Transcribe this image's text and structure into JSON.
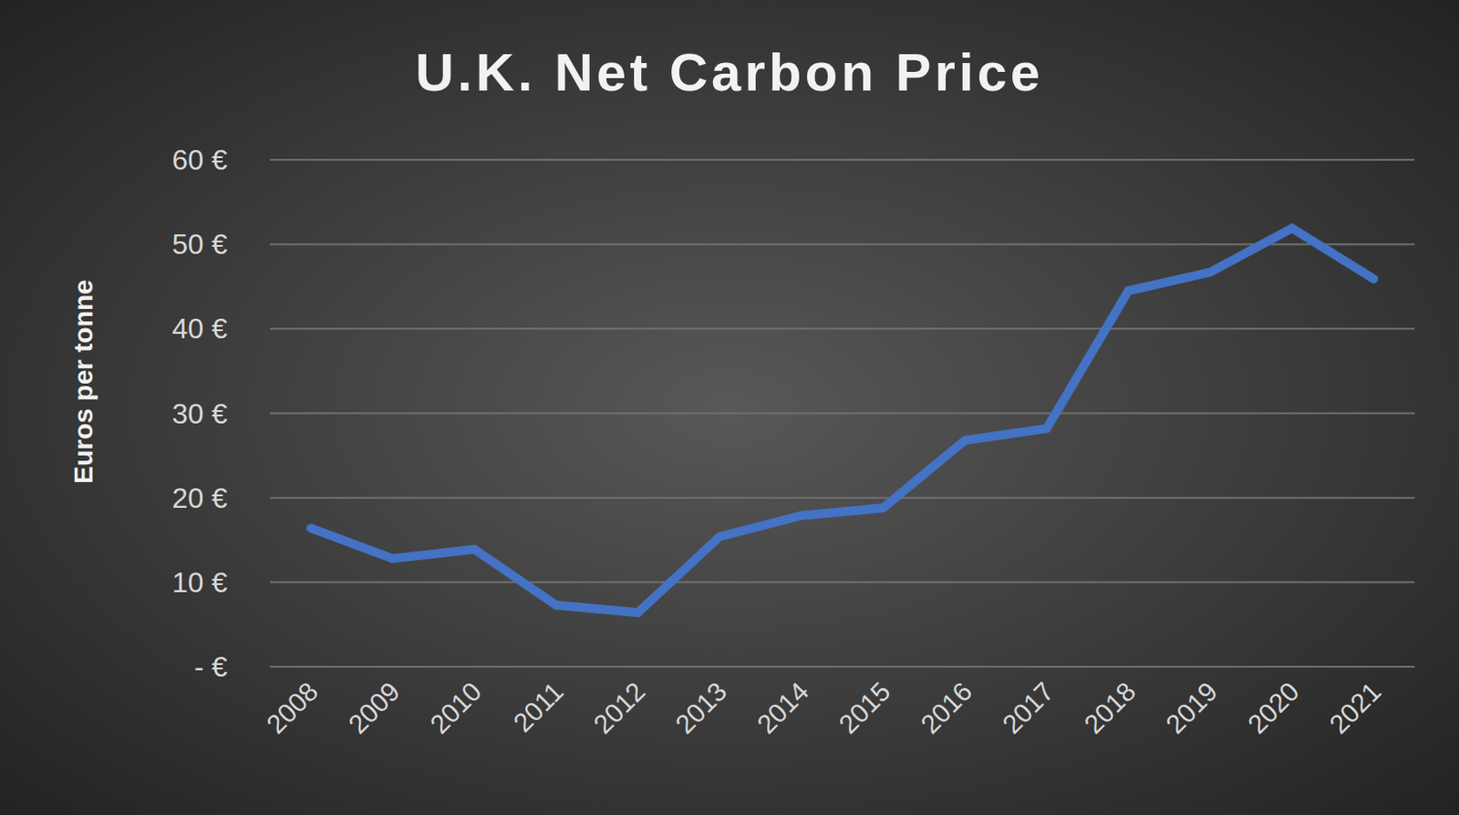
{
  "chart_data": {
    "type": "line",
    "title": "U.K. Net Carbon Price",
    "y_label": "Euros per tonne",
    "categories": [
      "2008",
      "2009",
      "2010",
      "2011",
      "2012",
      "2013",
      "2014",
      "2015",
      "2016",
      "2017",
      "2018",
      "2019",
      "2020",
      "2021"
    ],
    "values": [
      16.4,
      12.8,
      13.9,
      7.3,
      6.4,
      15.4,
      17.9,
      18.8,
      26.8,
      28.2,
      44.5,
      46.7,
      51.9,
      45.9
    ],
    "color": "#4472c4",
    "ylim": [
      0,
      60
    ],
    "yticks": [
      {
        "value": 0,
        "label": "- €"
      },
      {
        "value": 10,
        "label": "10 €"
      },
      {
        "value": 20,
        "label": "20 €"
      },
      {
        "value": 30,
        "label": "30 €"
      },
      {
        "value": 40,
        "label": "40 €"
      },
      {
        "value": 50,
        "label": "50 €"
      },
      {
        "value": 60,
        "label": "60 €"
      }
    ],
    "grid": true
  }
}
